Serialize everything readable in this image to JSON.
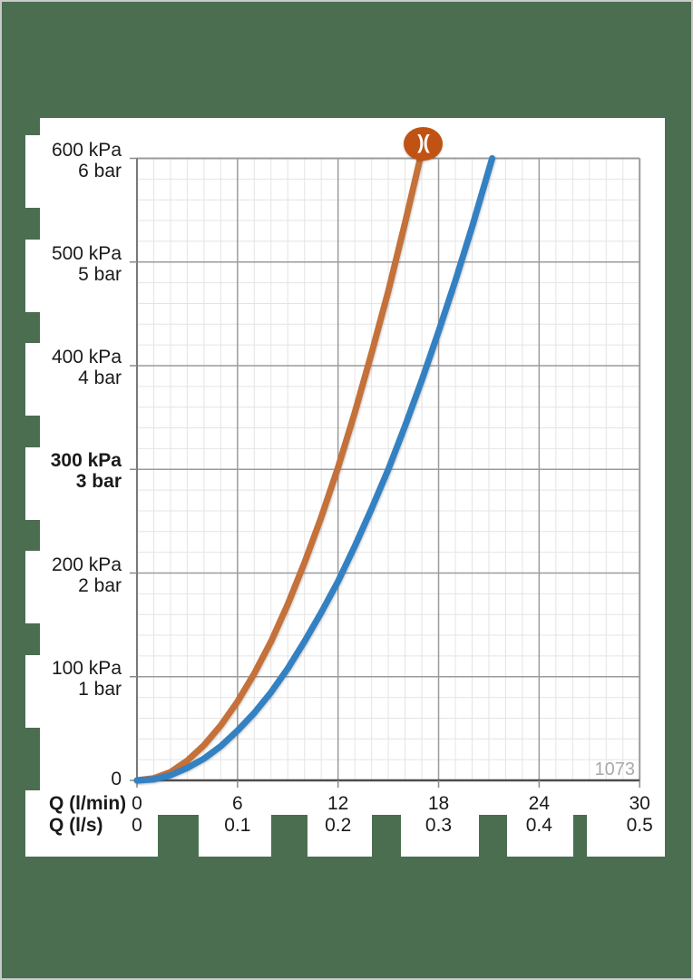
{
  "page": {
    "background": "#4b6e51",
    "border_color": "#cacaca",
    "panel_color": "#ffffff"
  },
  "logo": {
    "glyph": ")(",
    "background": "#c05214"
  },
  "colors": {
    "grid_minor": "#e4e4e4",
    "grid_major": "#9b9b9b",
    "axis_left": "#787878",
    "axis_bottom": "#4d4d4d",
    "tick": "#8a8a8a",
    "chart_number": "#a9a9a9",
    "text": "#1a1a1a"
  },
  "chart_data": {
    "type": "line",
    "number": "1073",
    "grid": true,
    "legend": "none",
    "x_axis": {
      "min": 0,
      "max": 30,
      "minor_step": 1,
      "major_step": 6,
      "rows": [
        {
          "label": "Q (l/min)",
          "unit": "l/min",
          "ticks": [
            "0",
            "6",
            "12",
            "18",
            "24",
            "30"
          ]
        },
        {
          "label": "Q (l/s)",
          "unit": "l/s",
          "ticks": [
            "0",
            "0.1",
            "0.2",
            "0.3",
            "0.4",
            "0.5"
          ]
        }
      ]
    },
    "y_axis": {
      "min": 0,
      "max": 600,
      "minor_step": 20,
      "major_step": 100,
      "unit_primary": "kPa",
      "unit_secondary": "bar",
      "ticks": [
        {
          "kpa": "600 kPa",
          "bar": "6 bar",
          "value": 600,
          "bold": false
        },
        {
          "kpa": "500 kPa",
          "bar": "5 bar",
          "value": 500,
          "bold": false
        },
        {
          "kpa": "400 kPa",
          "bar": "4 bar",
          "value": 400,
          "bold": false
        },
        {
          "kpa": "300 kPa",
          "bar": "3 bar",
          "value": 300,
          "bold": true
        },
        {
          "kpa": "200 kPa",
          "bar": "2 bar",
          "value": 200,
          "bold": false
        },
        {
          "kpa": "100 kPa",
          "bar": "1 bar",
          "value": 100,
          "bold": false
        },
        {
          "kpa": "0",
          "bar": "",
          "value": 0,
          "bold": false
        }
      ]
    },
    "series": [
      {
        "name": "orange-curve",
        "color": "#c4713a",
        "points_lmin_kpa": [
          [
            0,
            0
          ],
          [
            1,
            2
          ],
          [
            2,
            8
          ],
          [
            3,
            19
          ],
          [
            4,
            34
          ],
          [
            5,
            53
          ],
          [
            6,
            76
          ],
          [
            7,
            103
          ],
          [
            8,
            134
          ],
          [
            9,
            170
          ],
          [
            10,
            210
          ],
          [
            11,
            254
          ],
          [
            12,
            302
          ],
          [
            13,
            355
          ],
          [
            14,
            412
          ],
          [
            15,
            472
          ],
          [
            16,
            538
          ],
          [
            16.9,
            600
          ]
        ]
      },
      {
        "name": "blue-curve",
        "color": "#3381c2",
        "points_lmin_kpa": [
          [
            0,
            0
          ],
          [
            1,
            1
          ],
          [
            2,
            5
          ],
          [
            3,
            12
          ],
          [
            4,
            21
          ],
          [
            5,
            33
          ],
          [
            6,
            48
          ],
          [
            7,
            65
          ],
          [
            8,
            85
          ],
          [
            9,
            108
          ],
          [
            10,
            134
          ],
          [
            11,
            162
          ],
          [
            12,
            192
          ],
          [
            13,
            226
          ],
          [
            14,
            262
          ],
          [
            15,
            300
          ],
          [
            16,
            342
          ],
          [
            17,
            386
          ],
          [
            18,
            433
          ],
          [
            19,
            482
          ],
          [
            20,
            534
          ],
          [
            21.2,
            600
          ]
        ]
      }
    ]
  }
}
